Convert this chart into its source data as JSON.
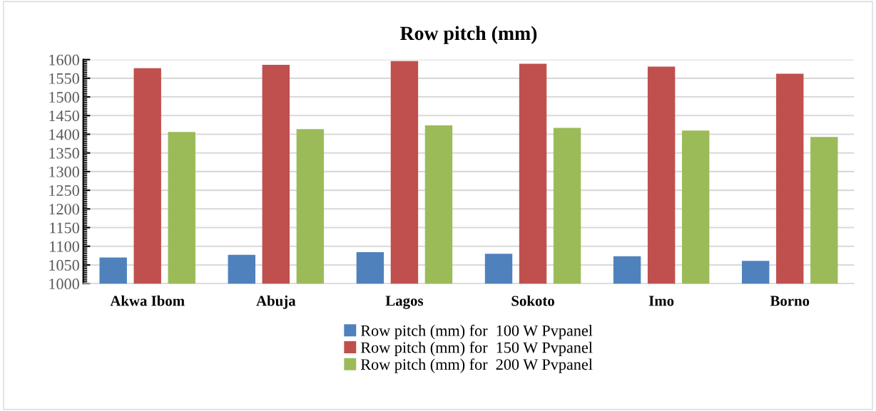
{
  "chart_data": {
    "type": "bar",
    "title": "Row pitch (mm)",
    "categories": [
      "Akwa Ibom",
      "Abuja",
      "Lagos",
      "Sokoto",
      "Imo",
      "Borno"
    ],
    "series": [
      {
        "name": "Row pitch (mm) for  100 W Pvpanel",
        "color": "#4f81bd",
        "values": [
          1070,
          1077,
          1084,
          1080,
          1073,
          1061
        ]
      },
      {
        "name": "Row pitch (mm) for  150 W Pvpanel",
        "color": "#c0504d",
        "values": [
          1577,
          1586,
          1596,
          1589,
          1581,
          1562
        ]
      },
      {
        "name": "Row pitch (mm) for  200 W Pvpanel",
        "color": "#9bbb59",
        "values": [
          1406,
          1414,
          1424,
          1417,
          1410,
          1393
        ]
      }
    ],
    "ylim": [
      1000,
      1600
    ],
    "yticks": [
      1000,
      1050,
      1100,
      1150,
      1200,
      1250,
      1300,
      1350,
      1400,
      1450,
      1500,
      1550,
      1600
    ],
    "grid": "y",
    "legend": "bottom"
  }
}
